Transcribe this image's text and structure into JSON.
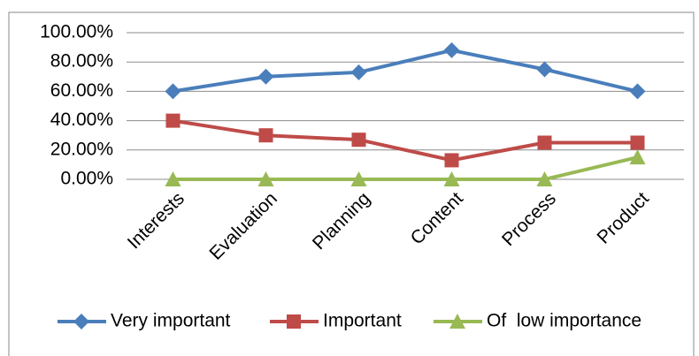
{
  "chart_data": {
    "type": "line",
    "categories": [
      "Interests",
      "Evaluation",
      "Planning",
      "Content",
      "Process",
      "Product"
    ],
    "series": [
      {
        "name": "Very important",
        "color": "#4a7ebb",
        "marker": "diamond",
        "values": [
          60,
          70,
          73,
          88,
          75,
          60
        ]
      },
      {
        "name": "Important",
        "color": "#be4b48",
        "marker": "square",
        "values": [
          40,
          30,
          27,
          13,
          25,
          25
        ]
      },
      {
        "name": "Of  low importance",
        "color": "#98b954",
        "marker": "triangle",
        "values": [
          0,
          0,
          0,
          0,
          0,
          15
        ]
      }
    ],
    "ylim": [
      0,
      100
    ],
    "yticks": [
      {
        "value": 0,
        "label": "0.00%"
      },
      {
        "value": 20,
        "label": "20.00%"
      },
      {
        "value": 40,
        "label": "40.00%"
      },
      {
        "value": 60,
        "label": "60.00%"
      },
      {
        "value": 80,
        "label": "80.00%"
      },
      {
        "value": 100,
        "label": "100.00%"
      }
    ],
    "grid": true,
    "legend": "bottom"
  }
}
